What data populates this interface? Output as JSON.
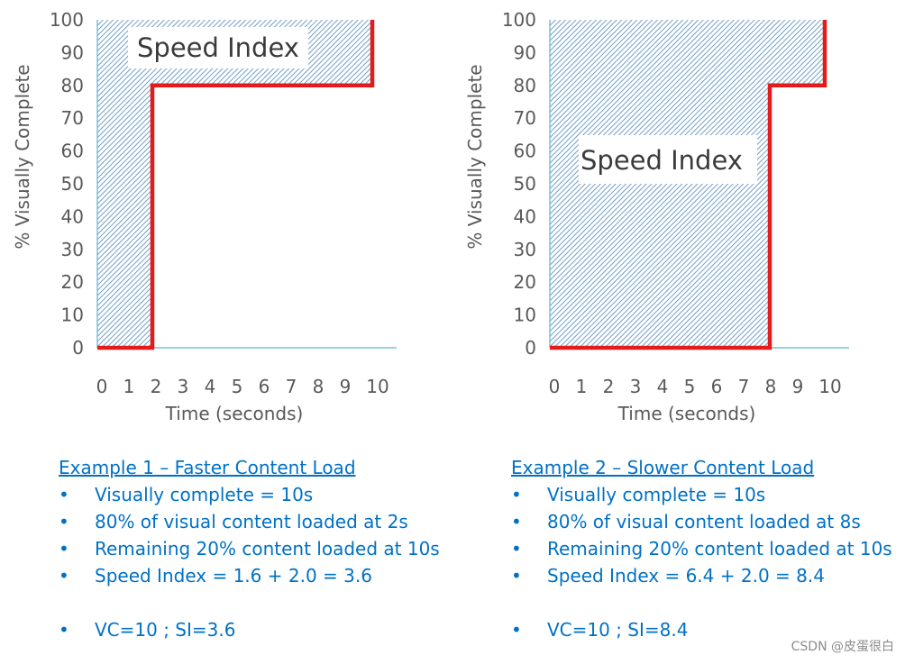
{
  "colors": {
    "axis": "#5fb4d0",
    "hatch": "#4f86b8",
    "curve": "#e31b1b",
    "text_blue": "#0071c5",
    "tick_text": "#595959"
  },
  "chart_data": [
    {
      "type": "line",
      "title": "",
      "xlabel": "Time (seconds)",
      "ylabel": "% Visually Complete",
      "xlim": [
        0,
        11
      ],
      "ylim": [
        0,
        100
      ],
      "x_ticks": [
        "0",
        "1",
        "2",
        "3",
        "4",
        "5",
        "6",
        "7",
        "8",
        "9",
        "10"
      ],
      "y_ticks": [
        "0",
        "10",
        "20",
        "30",
        "40",
        "50",
        "60",
        "70",
        "80",
        "90",
        "100"
      ],
      "series": [
        {
          "name": "Visual progress",
          "x": [
            0,
            2,
            2,
            10,
            10
          ],
          "y": [
            0,
            0,
            80,
            80,
            100
          ]
        }
      ],
      "shaded_area_label": "Speed Index",
      "shaded_area": "area above visual progress curve, from 0 to 10 s"
    },
    {
      "type": "line",
      "title": "",
      "xlabel": "Time (seconds)",
      "ylabel": "% Visually Complete",
      "xlim": [
        0,
        11
      ],
      "ylim": [
        0,
        100
      ],
      "x_ticks": [
        "0",
        "1",
        "2",
        "3",
        "4",
        "5",
        "6",
        "7",
        "8",
        "9",
        "10"
      ],
      "y_ticks": [
        "0",
        "10",
        "20",
        "30",
        "40",
        "50",
        "60",
        "70",
        "80",
        "90",
        "100"
      ],
      "series": [
        {
          "name": "Visual progress",
          "x": [
            0,
            8,
            8,
            10,
            10
          ],
          "y": [
            0,
            0,
            80,
            80,
            100
          ]
        }
      ],
      "shaded_area_label": "Speed Index",
      "shaded_area": "area above visual progress curve, from 0 to 10 s"
    }
  ],
  "examples": [
    {
      "title": "Example 1 – Faster Content Load",
      "bullet_symbol": "•",
      "bullets": [
        "Visually complete = 10s",
        "80% of visual content loaded at 2s",
        "Remaining 20% content loaded at 10s",
        "Speed Index = 1.6 + 2.0 = 3.6"
      ],
      "summary": "VC=10 ; SI=3.6"
    },
    {
      "title": "Example 2 – Slower Content Load",
      "bullet_symbol": "•",
      "bullets": [
        "Visually complete = 10s",
        "80% of visual content loaded at 8s",
        "Remaining 20% content loaded at 10s",
        "Speed Index = 6.4 + 2.0 = 8.4"
      ],
      "summary": "VC=10 ; SI=8.4"
    }
  ],
  "watermark": "CSDN @皮蛋很白"
}
